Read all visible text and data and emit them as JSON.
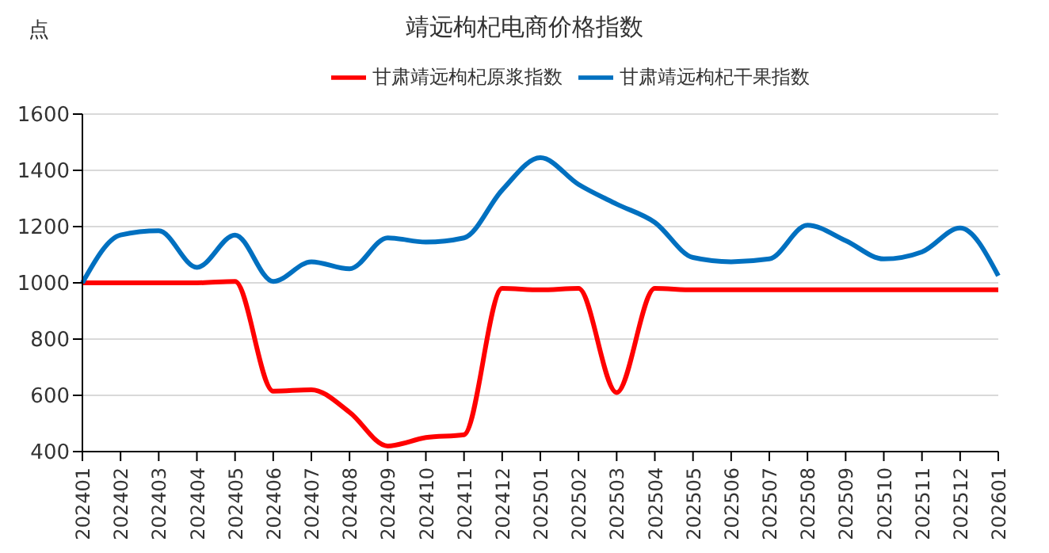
{
  "chart_data": {
    "type": "line",
    "title": "靖远枸杞电商价格指数",
    "ylabel": "点",
    "categories": [
      "202401",
      "202402",
      "202403",
      "202404",
      "202405",
      "202406",
      "202407",
      "202408",
      "202409",
      "202410",
      "202411",
      "202412",
      "202501",
      "202502",
      "202503",
      "202504",
      "202505",
      "202506",
      "202507",
      "202508",
      "202509",
      "202510",
      "202511",
      "202512",
      "202601"
    ],
    "series": [
      {
        "name": "甘肃靖远枸杞原浆指数",
        "color": "#ff0000",
        "values": [
          1000,
          1000,
          1000,
          1000,
          1005,
          615,
          620,
          540,
          420,
          450,
          460,
          980,
          975,
          980,
          610,
          980,
          975,
          975,
          975,
          975,
          975,
          975,
          975,
          975,
          975
        ]
      },
      {
        "name": "甘肃靖远枸杞干果指数",
        "color": "#0070c0",
        "values": [
          1000,
          1170,
          1185,
          1055,
          1170,
          1005,
          1075,
          1050,
          1160,
          1145,
          1160,
          1330,
          1445,
          1350,
          1280,
          1215,
          1090,
          1075,
          1085,
          1205,
          1150,
          1085,
          1110,
          1195,
          1025
        ]
      }
    ],
    "ylim": [
      400,
      1600
    ],
    "yticks": [
      400,
      600,
      800,
      1000,
      1200,
      1400,
      1600
    ],
    "grid": "y",
    "legend": "top",
    "marker": "none",
    "line_style": "solid"
  }
}
